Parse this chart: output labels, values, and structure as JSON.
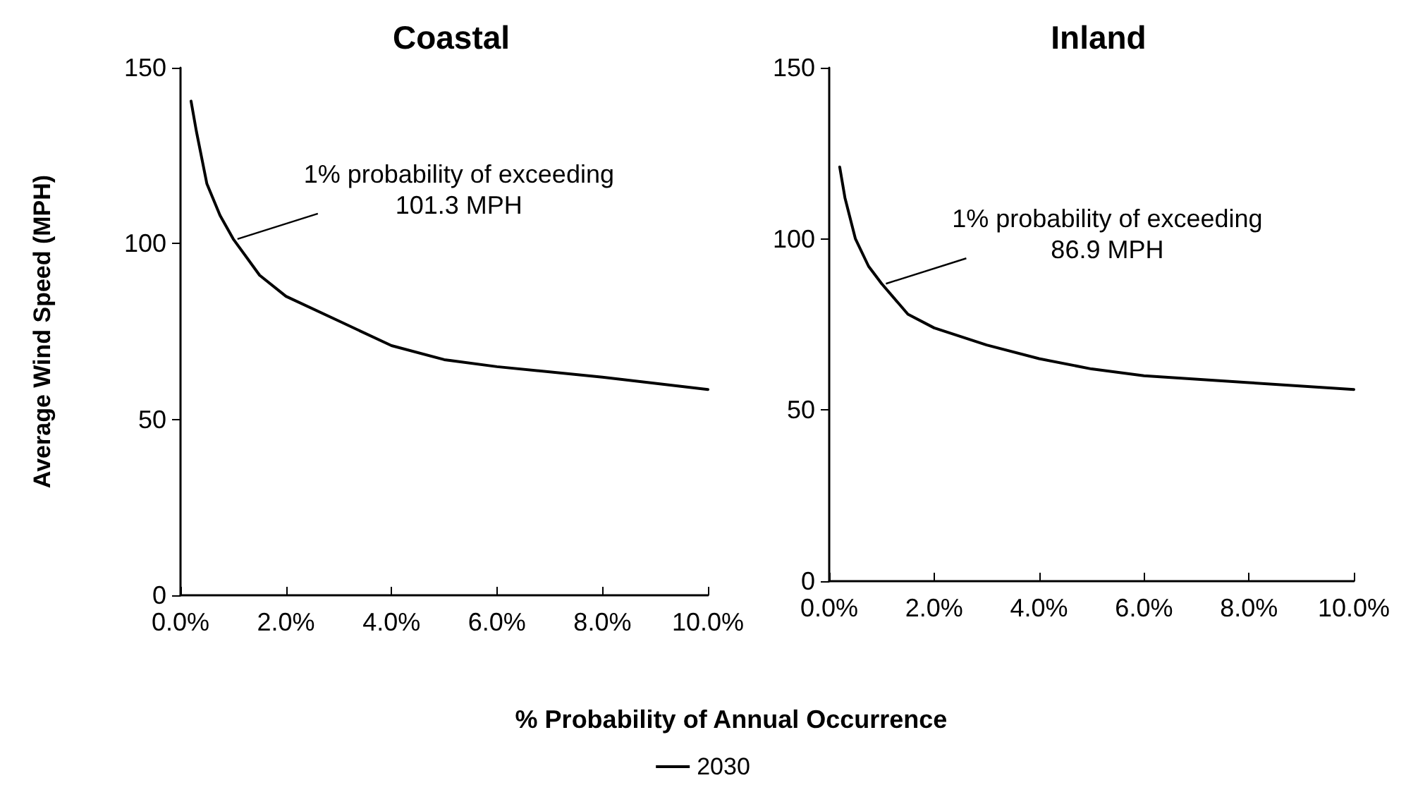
{
  "chart_data": [
    {
      "type": "line",
      "title": "Coastal",
      "ylabel": "Average Wind Speed (MPH)",
      "xlabel": "% Probability of Annual Occurrence",
      "legend": "bottom",
      "line_style": "solid",
      "marker": "none",
      "grid": false,
      "xlim": [
        0,
        10
      ],
      "xticks": [
        {
          "value": 0,
          "label": "0.0%"
        },
        {
          "value": 2,
          "label": "2.0%"
        },
        {
          "value": 4,
          "label": "4.0%"
        },
        {
          "value": 6,
          "label": "6.0%"
        },
        {
          "value": 8,
          "label": "8.0%"
        },
        {
          "value": 10,
          "label": "10.0%"
        }
      ],
      "ylim": [
        0,
        150
      ],
      "yticks": [
        0,
        50,
        100,
        150
      ],
      "x": [
        0.2,
        0.3,
        0.5,
        0.75,
        1,
        1.5,
        2,
        3,
        4,
        5,
        6,
        8,
        10
      ],
      "series": [
        {
          "name": "2030",
          "color": "#000000",
          "values": [
            140.5,
            132,
            117,
            108,
            101.3,
            91,
            85,
            78,
            71,
            67,
            65,
            62,
            58.5
          ]
        }
      ],
      "annotations": [
        {
          "text": "1% probability of exceeding\n101.3 MPH",
          "x": 1,
          "y": 101.3
        }
      ]
    },
    {
      "type": "line",
      "title": "Inland",
      "line_style": "solid",
      "marker": "none",
      "grid": false,
      "xlim": [
        0,
        10
      ],
      "xticks": [
        {
          "value": 0,
          "label": "0.0%"
        },
        {
          "value": 2,
          "label": "2.0%"
        },
        {
          "value": 4,
          "label": "4.0%"
        },
        {
          "value": 6,
          "label": "6.0%"
        },
        {
          "value": 8,
          "label": "8.0%"
        },
        {
          "value": 10,
          "label": "10.0%"
        }
      ],
      "ylim": [
        0,
        150
      ],
      "yticks": [
        0,
        50,
        100,
        150
      ],
      "x": [
        0.2,
        0.3,
        0.5,
        0.75,
        1,
        1.5,
        2,
        3,
        4,
        5,
        6,
        8,
        10
      ],
      "series": [
        {
          "name": "2030",
          "color": "#000000",
          "values": [
            121,
            112,
            100,
            92,
            86.9,
            78,
            74,
            69,
            65,
            62,
            60,
            58,
            56
          ]
        }
      ],
      "annotations": [
        {
          "text": "1% probability of exceeding\n86.9 MPH",
          "x": 1,
          "y": 86.9
        }
      ]
    }
  ]
}
